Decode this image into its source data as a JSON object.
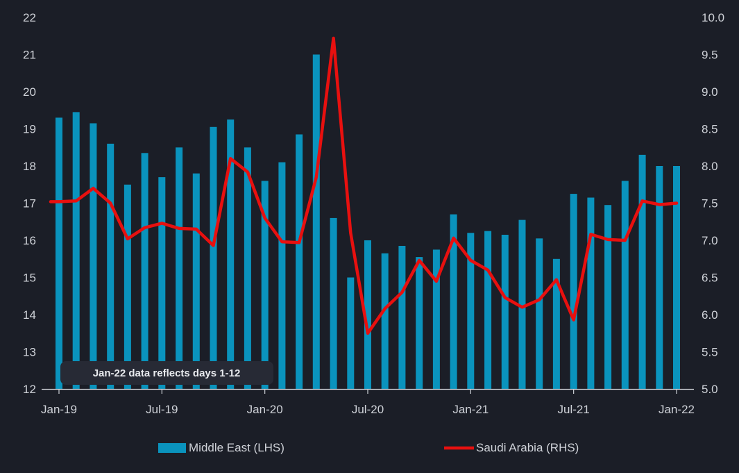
{
  "chart_data": {
    "type": "bar+line",
    "title": "",
    "categories": [
      "Jan-19",
      "Feb-19",
      "Mar-19",
      "Apr-19",
      "May-19",
      "Jun-19",
      "Jul-19",
      "Aug-19",
      "Sep-19",
      "Oct-19",
      "Nov-19",
      "Dec-19",
      "Jan-20",
      "Feb-20",
      "Mar-20",
      "Apr-20",
      "May-20",
      "Jun-20",
      "Jul-20",
      "Aug-20",
      "Sep-20",
      "Oct-20",
      "Nov-20",
      "Dec-20",
      "Jan-21",
      "Feb-21",
      "Mar-21",
      "Apr-21",
      "May-21",
      "Jun-21",
      "Jul-21",
      "Aug-21",
      "Sep-21",
      "Oct-21",
      "Nov-21",
      "Dec-21",
      "Jan-22"
    ],
    "x_tick_labels": [
      "Jan-19",
      "Jul-19",
      "Jan-20",
      "Jul-20",
      "Jan-21",
      "Jul-21",
      "Jan-22"
    ],
    "series": [
      {
        "name": "Middle East (LHS)",
        "type": "bar",
        "axis": "left",
        "color": "#0a93bd",
        "values": [
          19.3,
          19.45,
          19.15,
          18.6,
          17.5,
          18.35,
          17.7,
          18.5,
          17.8,
          19.05,
          19.25,
          18.5,
          17.6,
          18.1,
          18.85,
          21.0,
          16.6,
          15.0,
          16.0,
          15.65,
          15.85,
          15.55,
          15.75,
          16.7,
          16.2,
          16.25,
          16.15,
          16.55,
          16.05,
          15.5,
          17.25,
          17.15,
          16.95,
          17.6,
          18.3,
          18.0,
          18.0
        ]
      },
      {
        "name": "Saudi Arabia (RHS)",
        "type": "line",
        "axis": "right",
        "color": "#e8100f",
        "values": [
          7.52,
          7.53,
          7.7,
          7.5,
          7.02,
          7.17,
          7.23,
          7.16,
          7.15,
          6.93,
          8.1,
          7.92,
          7.3,
          6.98,
          6.97,
          7.85,
          9.72,
          7.1,
          5.75,
          6.08,
          6.3,
          6.73,
          6.45,
          7.03,
          6.73,
          6.6,
          6.23,
          6.1,
          6.2,
          6.47,
          5.93,
          7.08,
          7.01,
          7.0,
          7.53,
          7.48,
          7.5
        ]
      }
    ],
    "left_axis": {
      "ylim": [
        12,
        22
      ],
      "ticks": [
        "12",
        "13",
        "14",
        "15",
        "16",
        "17",
        "18",
        "19",
        "20",
        "21",
        "22"
      ]
    },
    "right_axis": {
      "ylim": [
        5.0,
        10.0
      ],
      "ticks": [
        "5.0",
        "5.5",
        "6.0",
        "6.5",
        "7.0",
        "7.5",
        "8.0",
        "8.5",
        "9.0",
        "9.5",
        "10.0"
      ]
    },
    "annotation": "Jan-22 data reflects days 1-12",
    "legend": {
      "placement": "bottom",
      "items": [
        "Middle East (LHS)",
        "Saudi Arabia (RHS)"
      ]
    },
    "grid": false
  }
}
